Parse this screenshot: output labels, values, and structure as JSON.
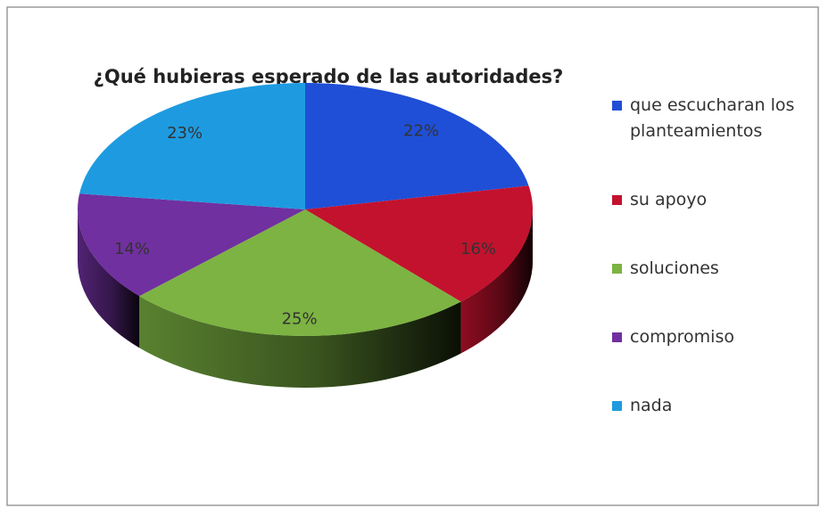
{
  "chart_data": {
    "type": "pie3d",
    "title": "¿Qué hubieras esperado de las autoridades?",
    "categories": [
      "que escucharan los planteamientos",
      "su apoyo",
      "soluciones",
      "compromiso",
      "nada"
    ],
    "values": [
      22,
      16,
      25,
      14,
      23
    ],
    "value_labels": [
      "22%",
      "16%",
      "25%",
      "14%",
      "23%"
    ],
    "colors": [
      "#1f4fd6",
      "#c3122e",
      "#7cb342",
      "#7030a0",
      "#1e9be0"
    ],
    "legend": "right"
  }
}
